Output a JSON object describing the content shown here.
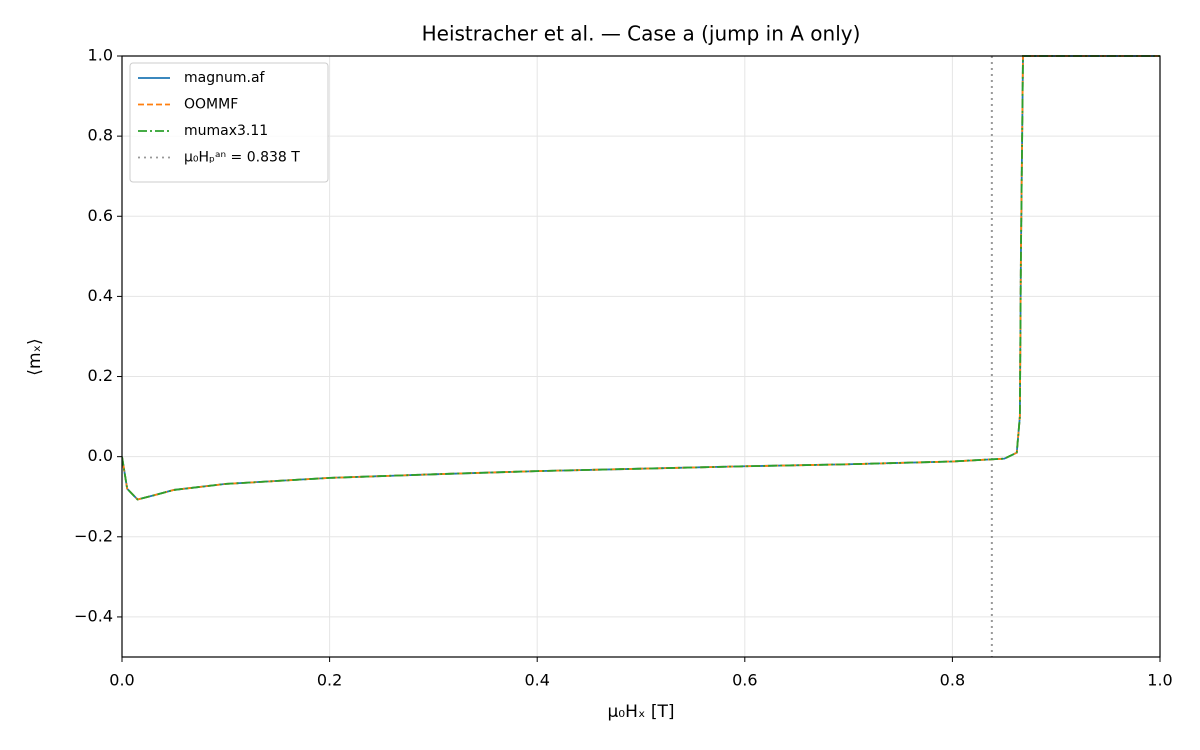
{
  "chart_data": {
    "type": "line",
    "title": "Heistracher et al. — Case a (jump in A only)",
    "x_label": "μ₀Hₓ [T]",
    "y_label": "⟨mₓ⟩",
    "x": [
      0,
      0.005,
      0.015,
      0.03,
      0.05,
      0.1,
      0.2,
      0.3,
      0.4,
      0.5,
      0.6,
      0.7,
      0.8,
      0.85,
      0.862,
      0.865,
      0.866,
      0.868,
      0.9,
      1.0
    ],
    "series": [
      {
        "name": "magnum.af",
        "color": "#1f77b4",
        "dash": "solid",
        "values": [
          0,
          -0.08,
          -0.107,
          -0.097,
          -0.083,
          -0.068,
          -0.053,
          -0.044,
          -0.036,
          -0.03,
          -0.024,
          -0.019,
          -0.012,
          -0.005,
          0.01,
          0.1,
          0.5,
          1.0,
          1.0,
          1.0
        ]
      },
      {
        "name": "OOMMF",
        "color": "#ff7f0e",
        "dash": "dashed",
        "values": [
          0,
          -0.08,
          -0.107,
          -0.097,
          -0.083,
          -0.068,
          -0.053,
          -0.044,
          -0.036,
          -0.03,
          -0.024,
          -0.019,
          -0.012,
          -0.005,
          0.01,
          0.1,
          0.5,
          1.0,
          1.0,
          1.0
        ]
      },
      {
        "name": "mumax3.11",
        "color": "#2ca02c",
        "dash": "dashdot",
        "values": [
          0,
          -0.08,
          -0.107,
          -0.097,
          -0.083,
          -0.068,
          -0.053,
          -0.044,
          -0.036,
          -0.03,
          -0.024,
          -0.019,
          -0.012,
          -0.005,
          0.01,
          0.1,
          0.5,
          1.0,
          1.0,
          1.0
        ]
      }
    ],
    "vline": {
      "x": 0.838,
      "label": "μ₀Hₚᵃⁿ = 0.838 T",
      "color": "#999999"
    },
    "xlim": [
      0,
      1
    ],
    "ylim": [
      -0.5,
      1.0
    ],
    "xticks": [
      {
        "value": 0,
        "label": "0.0"
      },
      0.2,
      0.4,
      0.6,
      0.8,
      {
        "value": 1,
        "label": "1.0"
      }
    ],
    "yticks": [
      {
        "value": -0.4,
        "label": "−0.4"
      },
      {
        "value": -0.2,
        "label": "−0.2"
      },
      {
        "value": 0,
        "label": "0.0"
      },
      0.2,
      0.4,
      0.6,
      0.8,
      {
        "value": 1,
        "label": "1.0"
      }
    ],
    "grid": true,
    "legend": "upper-left"
  }
}
